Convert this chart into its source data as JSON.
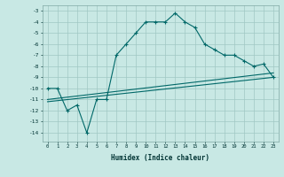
{
  "line1_x": [
    0,
    1,
    2,
    3,
    4,
    5,
    6,
    7,
    8,
    9,
    10,
    11,
    12,
    13,
    14,
    15,
    16,
    17,
    18,
    19,
    20,
    21,
    22,
    23
  ],
  "line1_y": [
    -10,
    -10,
    -12,
    -11.5,
    -14,
    -11,
    -11,
    -7,
    -6,
    -5,
    -4,
    -4,
    -4,
    -3.2,
    -4,
    -4.5,
    -6,
    -6.5,
    -7,
    -7,
    -7.5,
    -8,
    -7.8,
    -9
  ],
  "line2_x": [
    0,
    23
  ],
  "line2_y": [
    -11.2,
    -9.0
  ],
  "line3_x": [
    0,
    23
  ],
  "line3_y": [
    -11.0,
    -8.6
  ],
  "bg_color": "#c8e8e4",
  "grid_color": "#a0c8c4",
  "line_color": "#006868",
  "ylabel_vals": [
    -3,
    -4,
    -5,
    -6,
    -7,
    -8,
    -9,
    -10,
    -11,
    -12,
    -13,
    -14
  ],
  "xlabel": "Humidex (Indice chaleur)",
  "xlim": [
    -0.5,
    23.5
  ],
  "ylim": [
    -14.8,
    -2.5
  ]
}
